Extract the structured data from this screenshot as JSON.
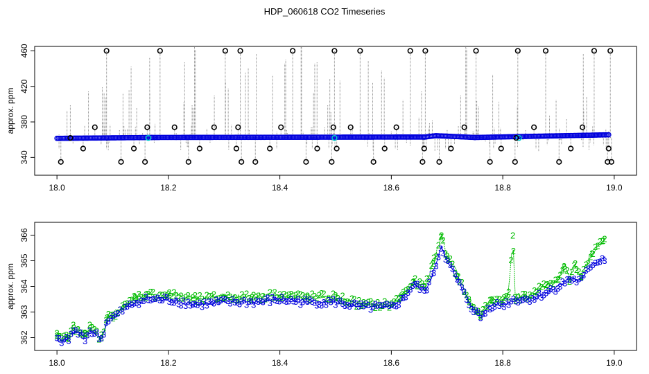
{
  "title": "HDP_060618  CO2 Timeseries",
  "colors": {
    "raw_dots": "#888888",
    "smoothed": "#0000dd",
    "highlight": "#00cccc",
    "outlier": "#000000",
    "series2": "#00bb00",
    "series3": "#0000dd"
  },
  "chart_data": [
    {
      "type": "scatter",
      "ylabel": "approx. ppm",
      "xlim": [
        17.96,
        19.04
      ],
      "ylim": [
        320,
        465
      ],
      "xticks": [
        "18.0",
        "18.2",
        "18.4",
        "18.6",
        "18.8",
        "19.0"
      ],
      "yticks": [
        "340",
        "380",
        "420",
        "460"
      ],
      "baseline_segments": [
        {
          "x": [
            18.0,
            18.17
          ],
          "y": [
            361.5,
            362.5
          ]
        },
        {
          "x": [
            18.17,
            18.66
          ],
          "y": [
            362.5,
            363.0
          ]
        },
        {
          "x": [
            18.66,
            18.68
          ],
          "y": [
            363.0,
            364.5
          ]
        },
        {
          "x": [
            18.68,
            18.75
          ],
          "y": [
            364.5,
            362.5
          ]
        },
        {
          "x": [
            18.75,
            18.99
          ],
          "y": [
            362.5,
            365.5
          ]
        }
      ],
      "outliers_x": [
        18.007,
        18.024,
        18.047,
        18.068,
        18.089,
        18.115,
        18.138,
        18.158,
        18.162,
        18.185,
        18.211,
        18.236,
        18.256,
        18.282,
        18.302,
        18.322,
        18.325,
        18.329,
        18.331,
        18.356,
        18.382,
        18.402,
        18.423,
        18.447,
        18.467,
        18.493,
        18.496,
        18.498,
        18.502,
        18.527,
        18.544,
        18.568,
        18.588,
        18.609,
        18.634,
        18.656,
        18.659,
        18.661,
        18.686,
        18.707,
        18.731,
        18.752,
        18.777,
        18.797,
        18.822,
        18.824,
        18.827,
        18.856,
        18.877,
        18.901,
        18.922,
        18.943,
        18.964,
        18.988,
        18.99,
        18.993,
        18.995
      ],
      "outliers_y": [
        335,
        362,
        350,
        374,
        460,
        335,
        350,
        335,
        374,
        460,
        374,
        335,
        350,
        374,
        460,
        350,
        374,
        460,
        335,
        335,
        350,
        374,
        460,
        335,
        350,
        335,
        374,
        460,
        350,
        374,
        460,
        335,
        350,
        374,
        460,
        335,
        350,
        460,
        335,
        350,
        374,
        460,
        335,
        350,
        335,
        362,
        460,
        374,
        460,
        335,
        350,
        374,
        460,
        335,
        350,
        460,
        335
      ],
      "highlights": [
        {
          "x": 18.164,
          "y": 362
        },
        {
          "x": 18.498,
          "y": 362
        },
        {
          "x": 18.829,
          "y": 362
        }
      ]
    },
    {
      "type": "line",
      "ylabel": "approx. ppm",
      "xlim": [
        17.96,
        19.04
      ],
      "ylim": [
        361.5,
        366.5
      ],
      "xticks": [
        "18.0",
        "18.2",
        "18.4",
        "18.6",
        "18.8",
        "19.0"
      ],
      "yticks": [
        "362",
        "363",
        "364",
        "365",
        "366"
      ],
      "series": [
        {
          "marker": "3",
          "x": [
            18.0,
            18.02,
            18.03,
            18.05,
            18.06,
            18.08,
            18.09,
            18.1,
            18.12,
            18.14,
            18.16,
            18.2,
            18.25,
            18.3,
            18.35,
            18.4,
            18.45,
            18.5,
            18.55,
            18.6,
            18.62,
            18.64,
            18.66,
            18.675,
            18.69,
            18.7,
            18.72,
            18.74,
            18.76,
            18.78,
            18.8,
            18.82,
            18.84,
            18.86,
            18.88,
            18.9,
            18.92,
            18.94,
            18.96,
            18.98
          ],
          "values": [
            361.9,
            361.9,
            362.3,
            362.0,
            362.3,
            361.95,
            362.7,
            362.8,
            363.1,
            363.4,
            363.5,
            363.5,
            363.3,
            363.4,
            363.4,
            363.5,
            363.4,
            363.4,
            363.2,
            363.2,
            363.5,
            364.1,
            363.8,
            364.5,
            365.6,
            365.0,
            364.2,
            363.3,
            362.8,
            363.3,
            363.3,
            363.5,
            363.5,
            363.6,
            363.8,
            364.0,
            364.3,
            364.2,
            364.9,
            365.1
          ]
        },
        {
          "marker": "2",
          "x": [
            18.0,
            18.02,
            18.03,
            18.05,
            18.06,
            18.08,
            18.09,
            18.1,
            18.12,
            18.14,
            18.16,
            18.2,
            18.25,
            18.3,
            18.35,
            18.4,
            18.45,
            18.5,
            18.55,
            18.6,
            18.62,
            18.64,
            18.66,
            18.675,
            18.69,
            18.7,
            18.72,
            18.74,
            18.76,
            18.78,
            18.8,
            18.81,
            18.818,
            18.822,
            18.84,
            18.86,
            18.88,
            18.9,
            18.91,
            18.92,
            18.93,
            18.94,
            18.96,
            18.98
          ],
          "values": [
            362.1,
            362.0,
            362.4,
            362.2,
            362.4,
            362.0,
            362.8,
            362.9,
            363.2,
            363.6,
            363.7,
            363.7,
            363.5,
            363.6,
            363.6,
            363.7,
            363.6,
            363.6,
            363.3,
            363.3,
            363.7,
            364.2,
            364.0,
            364.9,
            366.0,
            365.2,
            364.4,
            363.4,
            362.9,
            363.5,
            363.5,
            363.6,
            366.0,
            363.6,
            363.6,
            363.8,
            364.1,
            364.3,
            364.8,
            364.3,
            364.9,
            364.4,
            365.3,
            365.8
          ]
        }
      ]
    }
  ]
}
